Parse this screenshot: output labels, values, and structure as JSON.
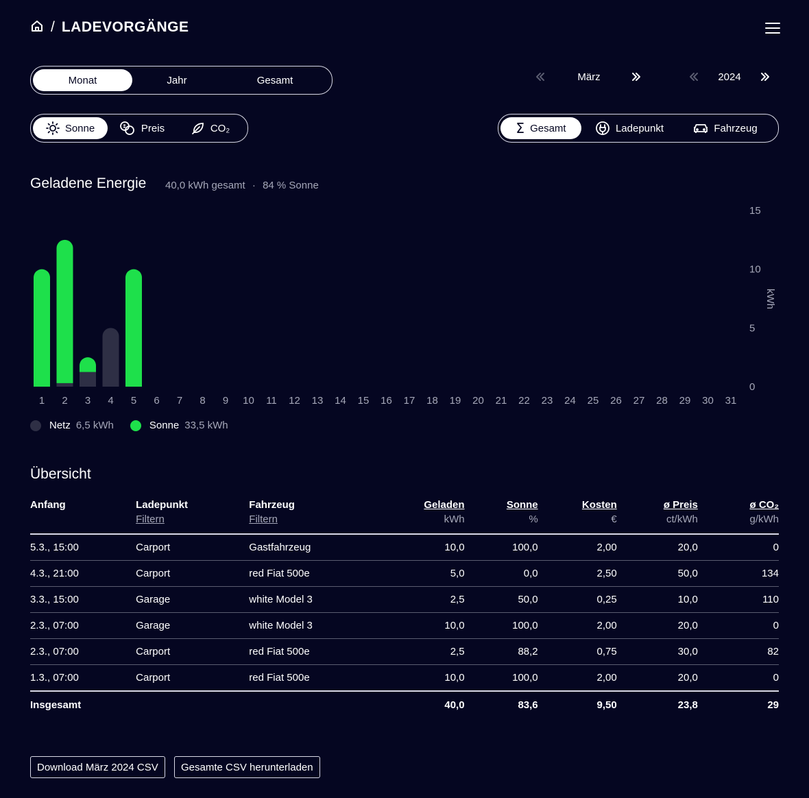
{
  "header": {
    "title": "LADEVORGÄNGE",
    "separator": "/"
  },
  "period_tabs": [
    "Monat",
    "Jahr",
    "Gesamt"
  ],
  "metric_tabs": [
    "Sonne",
    "Preis",
    "CO₂"
  ],
  "group_tabs": [
    "Gesamt",
    "Ladepunkt",
    "Fahrzeug"
  ],
  "nav": {
    "month": "März",
    "year": "2024"
  },
  "energy": {
    "title": "Geladene Energie",
    "total": "40,0 kWh gesamt",
    "dot": "·",
    "solar": "84 % Sonne"
  },
  "colors": {
    "background": "#050621",
    "sun": "#1ee04b",
    "grid": "#2e2f45",
    "muted": "#a5a7b8"
  },
  "chart_data": {
    "type": "bar",
    "stacked": true,
    "categories": [
      "1",
      "2",
      "3",
      "4",
      "5",
      "6",
      "7",
      "8",
      "9",
      "10",
      "11",
      "12",
      "13",
      "14",
      "15",
      "16",
      "17",
      "18",
      "19",
      "20",
      "21",
      "22",
      "23",
      "24",
      "25",
      "26",
      "27",
      "28",
      "29",
      "30",
      "31"
    ],
    "series": [
      {
        "name": "Netz",
        "color": "#2e2f45",
        "values": [
          0,
          0.3,
          1.25,
          5,
          0,
          0,
          0,
          0,
          0,
          0,
          0,
          0,
          0,
          0,
          0,
          0,
          0,
          0,
          0,
          0,
          0,
          0,
          0,
          0,
          0,
          0,
          0,
          0,
          0,
          0,
          0
        ]
      },
      {
        "name": "Sonne",
        "color": "#1ee04b",
        "values": [
          10,
          12.2,
          1.25,
          0,
          10,
          0,
          0,
          0,
          0,
          0,
          0,
          0,
          0,
          0,
          0,
          0,
          0,
          0,
          0,
          0,
          0,
          0,
          0,
          0,
          0,
          0,
          0,
          0,
          0,
          0,
          0
        ]
      }
    ],
    "ylim": [
      0,
      15
    ],
    "yticks": [
      "0",
      "5",
      "10",
      "15"
    ],
    "ylabel": "kWh",
    "legend": [
      {
        "name": "Netz",
        "value": "6,5 kWh"
      },
      {
        "name": "Sonne",
        "value": "33,5 kWh"
      }
    ]
  },
  "table": {
    "title": "Übersicht",
    "columns": [
      {
        "label": "Anfang",
        "sub": ""
      },
      {
        "label": "Ladepunkt",
        "sub": "Filtern"
      },
      {
        "label": "Fahrzeug",
        "sub": "Filtern"
      },
      {
        "label": "Geladen",
        "sub": "kWh"
      },
      {
        "label": "Sonne",
        "sub": "%"
      },
      {
        "label": "Kosten",
        "sub": "€"
      },
      {
        "label": "ø Preis",
        "sub": "ct/kWh"
      },
      {
        "label": "ø CO₂",
        "sub": "g/kWh"
      }
    ],
    "rows": [
      [
        "5.3., 15:00",
        "Carport",
        "Gastfahrzeug",
        "10,0",
        "100,0",
        "2,00",
        "20,0",
        "0"
      ],
      [
        "4.3., 21:00",
        "Carport",
        "red Fiat 500e",
        "5,0",
        "0,0",
        "2,50",
        "50,0",
        "134"
      ],
      [
        "3.3., 15:00",
        "Garage",
        "white Model 3",
        "2,5",
        "50,0",
        "0,25",
        "10,0",
        "110"
      ],
      [
        "2.3., 07:00",
        "Garage",
        "white Model 3",
        "10,0",
        "100,0",
        "2,00",
        "20,0",
        "0"
      ],
      [
        "2.3., 07:00",
        "Carport",
        "red Fiat 500e",
        "2,5",
        "88,2",
        "0,75",
        "30,0",
        "82"
      ],
      [
        "1.3., 07:00",
        "Carport",
        "red Fiat 500e",
        "10,0",
        "100,0",
        "2,00",
        "20,0",
        "0"
      ]
    ],
    "total": [
      "Insgesamt",
      "",
      "",
      "40,0",
      "83,6",
      "9,50",
      "23,8",
      "29"
    ]
  },
  "downloads": [
    "Download März 2024 CSV",
    "Gesamte CSV herunterladen"
  ]
}
